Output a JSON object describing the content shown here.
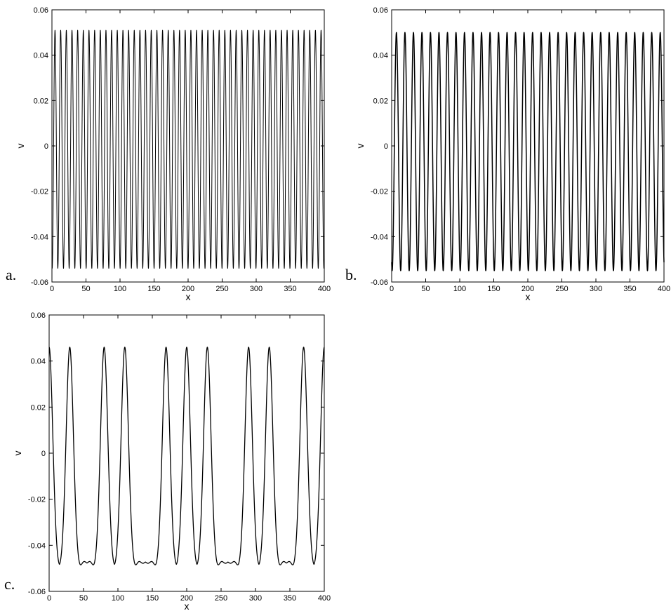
{
  "chart_data": [
    {
      "type": "line",
      "panel_label": "a.",
      "xlabel": "x",
      "ylabel": "v",
      "xlim": [
        0,
        400
      ],
      "ylim": [
        -0.06,
        0.06
      ],
      "xticks": [
        0,
        50,
        100,
        150,
        200,
        250,
        300,
        350,
        400
      ],
      "xtick_labels": [
        "0",
        "50",
        "100",
        "150",
        "200",
        "250",
        "300",
        "350",
        "400"
      ],
      "yticks": [
        -0.06,
        -0.04,
        -0.02,
        0,
        0.02,
        0.04,
        0.06
      ],
      "ytick_labels": [
        "-0.06",
        "-0.04",
        "-0.02",
        "0",
        "0.02",
        "0.04",
        "0.06"
      ],
      "series": [
        {
          "peaks_x": [
            4.5,
            12.8,
            21.1,
            29.5,
            37.8,
            46.1,
            54.4,
            62.7,
            71.0,
            79.4,
            87.7,
            96.0,
            104.3,
            112.6,
            120.9,
            129.2,
            137.6,
            145.9,
            154.2,
            162.5,
            170.8,
            179.1,
            187.4,
            195.8,
            204.1,
            212.4,
            220.7,
            229.0,
            237.3,
            245.6,
            254.0,
            262.3,
            270.6,
            278.9,
            287.2,
            295.5,
            303.8,
            312.2,
            320.5,
            328.8,
            337.1,
            345.4,
            353.7,
            362.0,
            370.4,
            378.7,
            387.0,
            395.3
          ],
          "max": 0.051,
          "min": -0.054
        }
      ]
    },
    {
      "type": "line",
      "panel_label": "b.",
      "xlabel": "x",
      "ylabel": "v",
      "xlim": [
        0,
        400
      ],
      "ylim": [
        -0.06,
        0.06
      ],
      "xticks": [
        0,
        50,
        100,
        150,
        200,
        250,
        300,
        350,
        400
      ],
      "xtick_labels": [
        "0",
        "50",
        "100",
        "150",
        "200",
        "250",
        "300",
        "350",
        "400"
      ],
      "yticks": [
        -0.06,
        -0.04,
        -0.02,
        0,
        0.02,
        0.04,
        0.06
      ],
      "ytick_labels": [
        "-0.06",
        "-0.04",
        "-0.02",
        "0",
        "0.02",
        "0.04",
        "0.06"
      ],
      "series": [
        {
          "peaks_x": [
            7,
            19.5,
            32,
            44.5,
            57,
            69.5,
            82,
            94.5,
            107,
            119.5,
            132,
            144.5,
            157,
            169.5,
            182,
            194.5,
            207,
            219.5,
            232,
            244.5,
            257,
            269.5,
            282,
            294.5,
            307,
            319.5,
            332,
            344.5,
            357,
            369.5,
            382,
            394.5
          ],
          "max": 0.05,
          "min": -0.055
        }
      ]
    },
    {
      "type": "line",
      "panel_label": "c.",
      "xlabel": "x",
      "ylabel": "v",
      "xlim": [
        0,
        400
      ],
      "ylim": [
        -0.06,
        0.06
      ],
      "xticks": [
        0,
        50,
        100,
        150,
        200,
        250,
        300,
        350,
        400
      ],
      "xtick_labels": [
        "0",
        "50",
        "100",
        "150",
        "200",
        "250",
        "300",
        "350",
        "400"
      ],
      "yticks": [
        -0.06,
        -0.04,
        -0.02,
        0,
        0.02,
        0.04,
        0.06
      ],
      "ytick_labels": [
        "-0.06",
        "-0.04",
        "-0.02",
        "0",
        "0.02",
        "0.04",
        "0.06"
      ],
      "series": [
        {
          "peaks_x": [
            0,
            30,
            80,
            110,
            170,
            200,
            230,
            290,
            320,
            370,
            400
          ],
          "max": 0.046,
          "min": -0.05,
          "plateau_level": -0.047
        }
      ]
    }
  ]
}
